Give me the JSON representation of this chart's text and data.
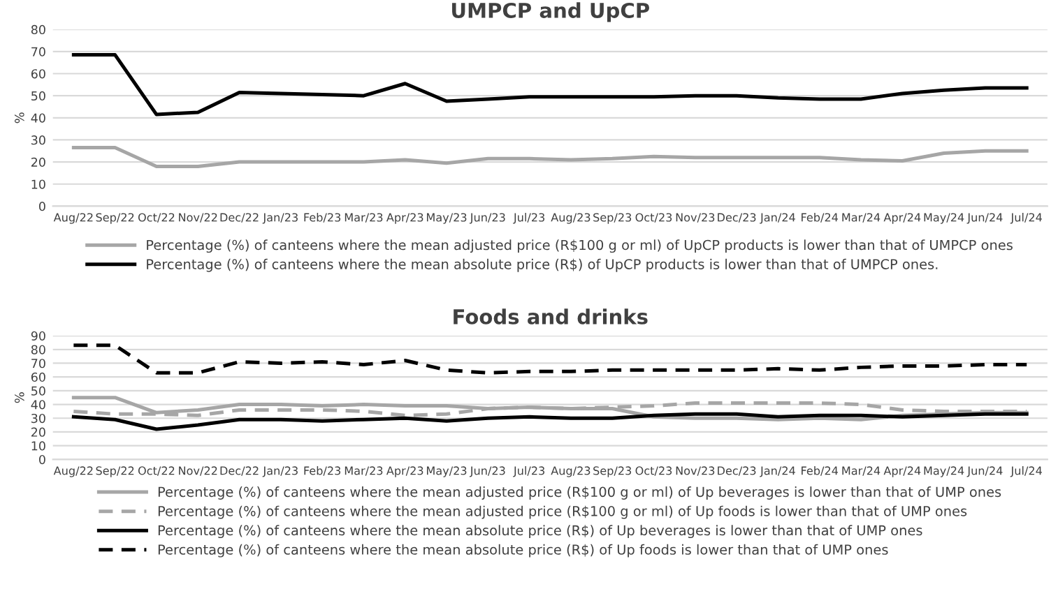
{
  "chart_data": [
    {
      "type": "line",
      "title": "UMPCP and UpCP",
      "ylabel": "%",
      "categories": [
        "Aug/22",
        "Sep/22",
        "Oct/22",
        "Nov/22",
        "Dec/22",
        "Jan/23",
        "Feb/23",
        "Mar/23",
        "Apr/23",
        "May/23",
        "Jun/23",
        "Jul/23",
        "Aug/23",
        "Sep/23",
        "Oct/23",
        "Nov/23",
        "Dec/23",
        "Jan/24",
        "Feb/24",
        "Mar/24",
        "Apr/24",
        "May/24",
        "Jun/24",
        "Jul/24"
      ],
      "ylim": [
        0,
        80
      ],
      "yticks": [
        0,
        10,
        20,
        30,
        40,
        50,
        60,
        70,
        80
      ],
      "grid": "y",
      "legend": "bottom",
      "marker": "none",
      "series": [
        {
          "name": "Percentage (%) of canteens where the mean adjusted price (R$100 g or ml) of UpCP products is lower than that of UMPCP ones",
          "color": "#a6a6a6",
          "line_style": "solid",
          "values": [
            26.5,
            26.5,
            18,
            18,
            20,
            20,
            20,
            20,
            21,
            19.5,
            21.5,
            21.5,
            21,
            21.5,
            22.5,
            22,
            22,
            22,
            22,
            21,
            20.5,
            24,
            25,
            25
          ]
        },
        {
          "name": "Percentage (%) of canteens where the mean absolute price (R$) of UpCP products is lower than that of UMPCP ones.",
          "color": "#000000",
          "line_style": "solid",
          "values": [
            68.5,
            68.5,
            41.5,
            42.5,
            51.5,
            51,
            50.5,
            50,
            55.5,
            47.5,
            48.5,
            49.5,
            49.5,
            49.5,
            49.5,
            50,
            50,
            49,
            48.5,
            48.5,
            51,
            52.5,
            53.5,
            53.5
          ]
        }
      ]
    },
    {
      "type": "line",
      "title": "Foods and drinks",
      "ylabel": "%",
      "categories": [
        "Aug/22",
        "Sep/22",
        "Oct/22",
        "Nov/22",
        "Dec/22",
        "Jan/23",
        "Feb/23",
        "Mar/23",
        "Apr/23",
        "May/23",
        "Jun/23",
        "Jul/23",
        "Aug/23",
        "Sep/23",
        "Oct/23",
        "Nov/23",
        "Dec/23",
        "Jan/24",
        "Feb/24",
        "Mar/24",
        "Apr/24",
        "May/24",
        "Jun/24",
        "Jul/24"
      ],
      "ylim": [
        0,
        90
      ],
      "yticks": [
        0,
        10,
        20,
        30,
        40,
        50,
        60,
        70,
        80,
        90
      ],
      "grid": "y",
      "legend": "bottom",
      "marker": "none",
      "series": [
        {
          "name": "Percentage (%) of canteens where the mean adjusted price (R$100 g or ml) of Up beverages is lower than that of UMP ones",
          "color": "#a6a6a6",
          "line_style": "solid",
          "values": [
            45,
            45,
            34,
            36,
            40,
            40,
            39,
            40,
            39,
            39,
            37,
            38,
            37,
            37,
            31,
            30,
            30,
            29,
            30,
            29,
            32,
            33,
            34,
            34
          ]
        },
        {
          "name": "Percentage (%) of canteens where the mean adjusted price (R$100 g or ml) of Up foods is lower than that of UMP ones",
          "color": "#a6a6a6",
          "line_style": "dashed",
          "values": [
            35,
            33,
            33,
            32,
            36,
            36,
            36,
            35,
            32,
            33,
            37,
            38,
            37,
            38,
            39,
            41,
            41,
            41,
            41,
            40,
            36,
            35,
            35,
            35
          ]
        },
        {
          "name": "Percentage (%) of canteens where the mean absolute price (R$) of Up beverages is lower than that of UMP ones",
          "color": "#000000",
          "line_style": "solid",
          "values": [
            31,
            29,
            22,
            25,
            29,
            29,
            28,
            29,
            30,
            28,
            30,
            31,
            30,
            30,
            32,
            33,
            33,
            31,
            32,
            32,
            31,
            32,
            33,
            33
          ]
        },
        {
          "name": "Percentage (%) of canteens where the mean absolute price (R$) of Up foods is lower than that of UMP ones",
          "color": "#000000",
          "line_style": "dashed",
          "values": [
            83,
            83,
            63,
            63,
            71,
            70,
            71,
            69,
            72,
            65,
            63,
            64,
            64,
            65,
            65,
            65,
            65,
            66,
            65,
            67,
            68,
            68,
            69,
            69
          ]
        }
      ]
    }
  ]
}
